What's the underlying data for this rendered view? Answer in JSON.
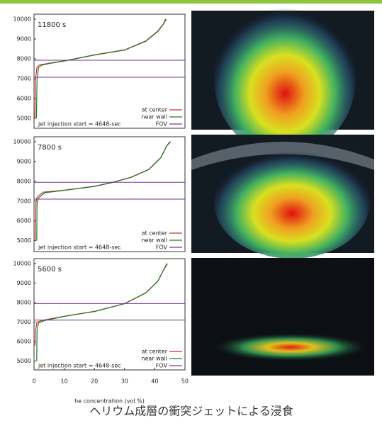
{
  "chart_data": [
    {
      "type": "line",
      "title": "11800 s",
      "annotation": "jet injection start = 4648-sec",
      "xlim": [
        0,
        50
      ],
      "ylim": [
        4500,
        10250
      ],
      "yticks": [
        5000,
        6000,
        7000,
        8000,
        9000,
        10000
      ],
      "series": [
        {
          "name": "at center",
          "color": "#d62728",
          "x": [
            0.3,
            0.5,
            1,
            2,
            5,
            10,
            20,
            30,
            37,
            41,
            43,
            43.5
          ],
          "values": [
            5000,
            7000,
            7600,
            7700,
            7780,
            7900,
            8200,
            8450,
            8900,
            9400,
            9800,
            10000
          ]
        },
        {
          "name": "near wall",
          "color": "#1a7a2a",
          "x": [
            0.8,
            1,
            1.5,
            2.5,
            5,
            10,
            20,
            30,
            37,
            41,
            43,
            43.8
          ],
          "values": [
            5000,
            7000,
            7550,
            7680,
            7760,
            7890,
            8190,
            8440,
            8880,
            9380,
            9780,
            10000
          ]
        },
        {
          "name": "FOV",
          "color": "#7b3294",
          "hlines": [
            7070,
            7930
          ]
        }
      ]
    },
    {
      "type": "line",
      "title": "7800 s",
      "annotation": "jet injection start = 4648-sec",
      "xlim": [
        0,
        50
      ],
      "ylim": [
        4450,
        10250
      ],
      "yticks": [
        5000,
        6000,
        7000,
        8000,
        9000,
        10000
      ],
      "series": [
        {
          "name": "at center",
          "color": "#d62728",
          "x": [
            0.4,
            0.6,
            1,
            3,
            10,
            20,
            26,
            32,
            38,
            42,
            44,
            45
          ],
          "values": [
            5000,
            6900,
            7200,
            7450,
            7550,
            7750,
            7950,
            8200,
            8600,
            9200,
            9800,
            10000
          ]
        },
        {
          "name": "near wall",
          "color": "#1a7a2a",
          "x": [
            0.9,
            1,
            1.5,
            3.5,
            10,
            20,
            26,
            32,
            38,
            42,
            44,
            45.2
          ],
          "values": [
            5000,
            6900,
            7150,
            7420,
            7540,
            7740,
            7940,
            8190,
            8590,
            9190,
            9790,
            10000
          ]
        },
        {
          "name": "FOV",
          "color": "#7b3294",
          "hlines": [
            7100,
            7950
          ]
        }
      ]
    },
    {
      "type": "line",
      "title": "5600 s",
      "annotation": "jet injection start = 4648-sec",
      "xlabel": "he concentration (vol.%)",
      "xlim": [
        0,
        50
      ],
      "xticks": [
        0,
        10,
        20,
        30,
        40,
        50
      ],
      "ylim": [
        4550,
        10250
      ],
      "yticks": [
        5000,
        6000,
        7000,
        8000,
        9000,
        10000
      ],
      "series": [
        {
          "name": "at center",
          "color": "#d62728",
          "x": [
            0.3,
            0.5,
            1,
            3,
            10,
            20,
            30,
            37,
            41,
            43,
            44
          ],
          "values": [
            5800,
            6600,
            7000,
            7100,
            7300,
            7550,
            7950,
            8500,
            9100,
            9700,
            10000
          ]
        },
        {
          "name": "near wall",
          "color": "#1a7a2a",
          "x": [
            0.9,
            1,
            1.5,
            3.5,
            10,
            20,
            30,
            37,
            41,
            43,
            44.2
          ],
          "values": [
            5000,
            6600,
            6950,
            7080,
            7290,
            7540,
            7940,
            8490,
            9090,
            9690,
            10000
          ]
        },
        {
          "name": "FOV",
          "color": "#7b3294",
          "hlines": [
            7100,
            7950
          ]
        }
      ]
    }
  ],
  "caption": "ヘリウム成層の衝突ジェットによる浸食"
}
